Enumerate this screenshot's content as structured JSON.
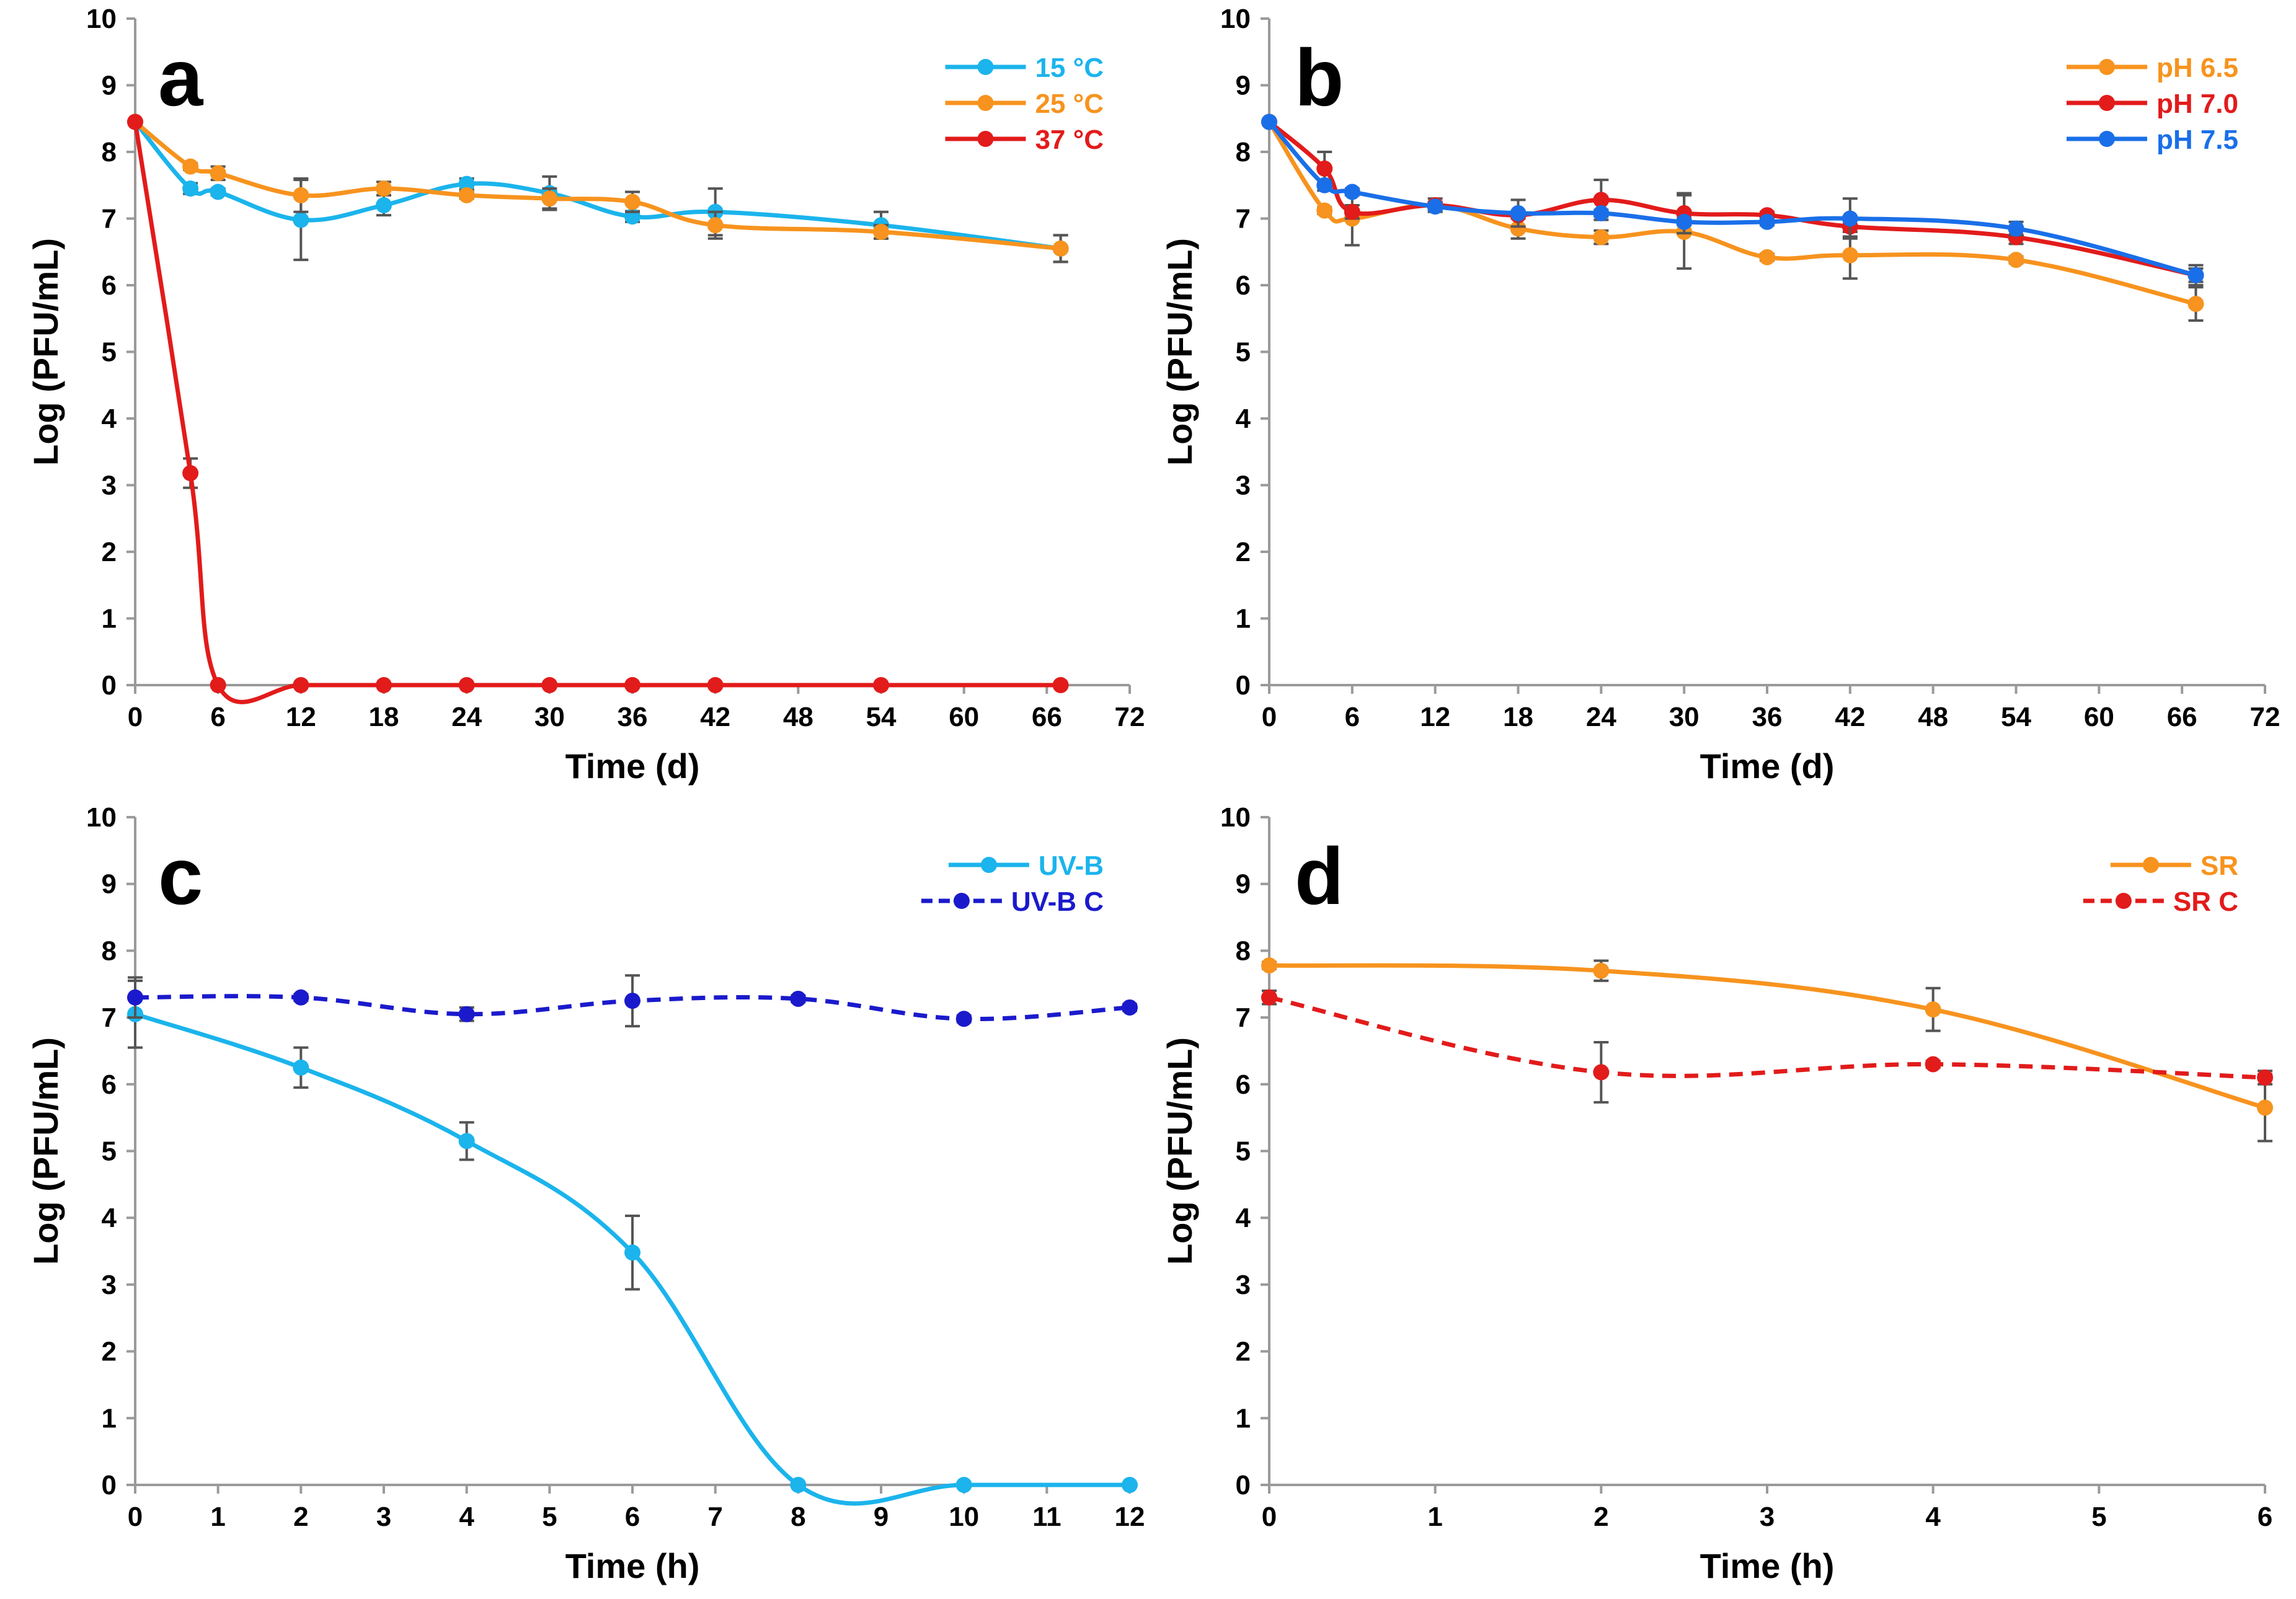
{
  "colors": {
    "cyan": "#1BB4EC",
    "orange": "#F7931E",
    "red": "#E21B1B",
    "blue": "#1A6FE8",
    "navy": "#1A1ACC",
    "axis": "#9A9A9A",
    "errorbar": "#555555"
  },
  "chart_data": [
    {
      "panel": "a",
      "type": "line",
      "xlabel": "Time (d)",
      "ylabel": "Log (PFU/mL)",
      "xlim": [
        0,
        72
      ],
      "ylim": [
        0,
        10
      ],
      "xticks": [
        0,
        6,
        12,
        18,
        24,
        30,
        36,
        42,
        48,
        54,
        60,
        66,
        72
      ],
      "yticks": [
        0,
        1,
        2,
        3,
        4,
        5,
        6,
        7,
        8,
        9,
        10
      ],
      "legend_position": "top-right",
      "series": [
        {
          "name": "15 °C",
          "color": "cyan",
          "dashed": false,
          "x": [
            0,
            4,
            6,
            12,
            18,
            24,
            30,
            36,
            42,
            54,
            67
          ],
          "y": [
            8.45,
            7.45,
            7.4,
            6.98,
            7.2,
            7.52,
            7.38,
            7.03,
            7.1,
            6.9,
            6.55
          ],
          "err": [
            0,
            0.08,
            0.05,
            0.6,
            0.15,
            0.08,
            0.25,
            0.08,
            0.35,
            0.2,
            0.2
          ]
        },
        {
          "name": "25 °C",
          "color": "orange",
          "dashed": false,
          "x": [
            0,
            4,
            6,
            12,
            18,
            24,
            30,
            36,
            42,
            54,
            67
          ],
          "y": [
            8.45,
            7.78,
            7.68,
            7.35,
            7.45,
            7.35,
            7.3,
            7.25,
            6.9,
            6.8,
            6.55
          ],
          "err": [
            0,
            0.05,
            0.1,
            0.25,
            0.1,
            0.05,
            0.15,
            0.15,
            0.2,
            0.1,
            0.2
          ]
        },
        {
          "name": "37 °C",
          "color": "red",
          "dashed": false,
          "x": [
            0,
            4,
            6,
            12,
            18,
            24,
            30,
            36,
            42,
            54,
            67
          ],
          "y": [
            8.45,
            3.18,
            0,
            0,
            0,
            0,
            0,
            0,
            0,
            0,
            0
          ],
          "err": [
            0,
            0.22,
            0,
            0,
            0,
            0,
            0,
            0,
            0,
            0,
            0
          ]
        }
      ]
    },
    {
      "panel": "b",
      "type": "line",
      "xlabel": "Time (d)",
      "ylabel": "Log (PFU/mL)",
      "xlim": [
        0,
        72
      ],
      "ylim": [
        0,
        10
      ],
      "xticks": [
        0,
        6,
        12,
        18,
        24,
        30,
        36,
        42,
        48,
        54,
        60,
        66,
        72
      ],
      "yticks": [
        0,
        1,
        2,
        3,
        4,
        5,
        6,
        7,
        8,
        9,
        10
      ],
      "legend_position": "top-right",
      "series": [
        {
          "name": "pH 6.5",
          "color": "orange",
          "dashed": false,
          "x": [
            0,
            4,
            6,
            12,
            18,
            24,
            30,
            36,
            42,
            54,
            67
          ],
          "y": [
            8.45,
            7.12,
            7.0,
            7.2,
            6.85,
            6.72,
            6.8,
            6.42,
            6.45,
            6.38,
            5.72
          ],
          "err": [
            0,
            0.05,
            0.4,
            0.1,
            0.15,
            0.1,
            0.55,
            0.05,
            0.35,
            0.05,
            0.25
          ]
        },
        {
          "name": "pH 7.0",
          "color": "red",
          "dashed": false,
          "x": [
            0,
            4,
            6,
            12,
            18,
            24,
            30,
            36,
            42,
            54,
            67
          ],
          "y": [
            8.45,
            7.75,
            7.1,
            7.2,
            7.05,
            7.28,
            7.08,
            7.05,
            6.88,
            6.72,
            6.15
          ],
          "err": [
            0,
            0.25,
            0.1,
            0.05,
            0.05,
            0.3,
            0.3,
            0.05,
            0.15,
            0.1,
            0.1
          ]
        },
        {
          "name": "pH 7.5",
          "color": "blue",
          "dashed": false,
          "x": [
            0,
            4,
            6,
            12,
            18,
            24,
            30,
            36,
            42,
            54,
            67
          ],
          "y": [
            8.45,
            7.5,
            7.4,
            7.18,
            7.08,
            7.08,
            6.95,
            6.95,
            7.0,
            6.85,
            6.15
          ],
          "err": [
            0,
            0.08,
            0.05,
            0.05,
            0.2,
            0.05,
            0.05,
            0.05,
            0.3,
            0.1,
            0.15
          ]
        }
      ]
    },
    {
      "panel": "c",
      "type": "line",
      "xlabel": "Time (h)",
      "ylabel": "Log (PFU/mL)",
      "xlim": [
        0,
        12
      ],
      "ylim": [
        0,
        10
      ],
      "xticks": [
        0,
        1,
        2,
        3,
        4,
        5,
        6,
        7,
        8,
        9,
        10,
        11,
        12
      ],
      "yticks": [
        0,
        1,
        2,
        3,
        4,
        5,
        6,
        7,
        8,
        9,
        10
      ],
      "legend_position": "top-right",
      "series": [
        {
          "name": "UV-B",
          "color": "cyan",
          "dashed": false,
          "x": [
            0,
            2,
            4,
            6,
            8,
            10,
            12
          ],
          "y": [
            7.05,
            6.25,
            5.15,
            3.48,
            0,
            0,
            0
          ],
          "err": [
            0.5,
            0.3,
            0.28,
            0.55,
            0,
            0,
            0
          ]
        },
        {
          "name": "UV-B C",
          "color": "navy",
          "dashed": true,
          "x": [
            0,
            2,
            4,
            6,
            8,
            10,
            12
          ],
          "y": [
            7.3,
            7.3,
            7.05,
            7.25,
            7.28,
            6.98,
            7.15
          ],
          "err": [
            0.3,
            0.05,
            0.1,
            0.38,
            0.05,
            0.05,
            0.05
          ]
        }
      ]
    },
    {
      "panel": "d",
      "type": "line",
      "xlabel": "Time (h)",
      "ylabel": "Log (PFU/mL)",
      "xlim": [
        0,
        6
      ],
      "ylim": [
        0,
        10
      ],
      "xticks": [
        0,
        1,
        2,
        3,
        4,
        5,
        6
      ],
      "yticks": [
        0,
        1,
        2,
        3,
        4,
        5,
        6,
        7,
        8,
        9,
        10
      ],
      "legend_position": "top-right",
      "series": [
        {
          "name": "SR",
          "color": "orange",
          "dashed": false,
          "x": [
            0,
            2,
            4,
            6
          ],
          "y": [
            7.78,
            7.7,
            7.12,
            5.65
          ],
          "err": [
            0.05,
            0.15,
            0.32,
            0.5
          ]
        },
        {
          "name": "SR C",
          "color": "red",
          "dashed": true,
          "x": [
            0,
            2,
            4,
            6
          ],
          "y": [
            7.3,
            6.18,
            6.3,
            6.1
          ],
          "err": [
            0.1,
            0.45,
            0.05,
            0.1
          ]
        }
      ]
    }
  ]
}
